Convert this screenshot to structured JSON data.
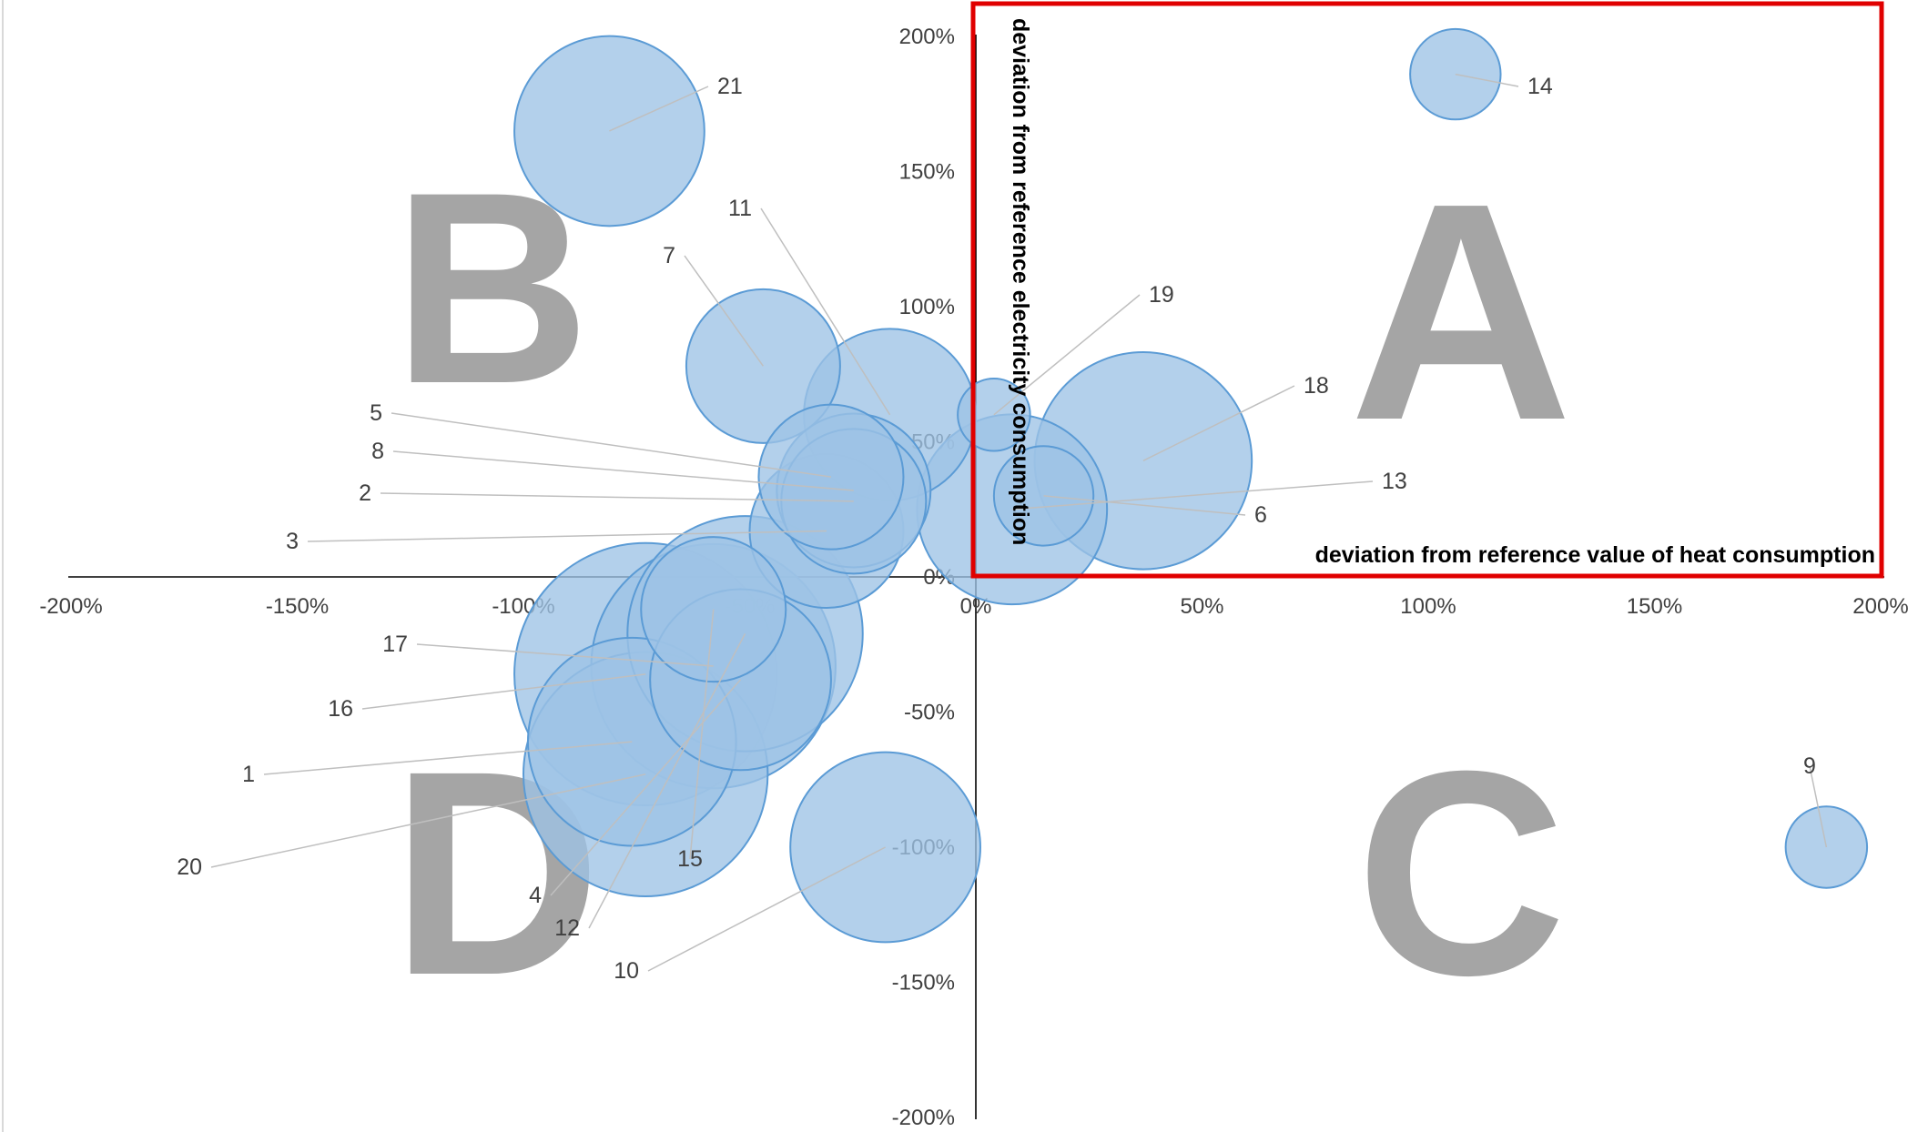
{
  "chart_data": {
    "type": "bubble",
    "xlabel": "deviation  from reference value of heat consumption",
    "ylabel": "deviation from reference electricity consumption",
    "xlim": [
      -2,
      2
    ],
    "ylim": [
      -2,
      2
    ],
    "x_ticks": [
      "-200%",
      "-150%",
      "-100%",
      "-50%",
      "0%",
      "50%",
      "100%",
      "150%",
      "200%"
    ],
    "y_ticks": [
      "200%",
      "150%",
      "100%",
      "50%",
      "0%",
      "-50%",
      "-100%",
      "-150%",
      "-200%"
    ],
    "grid": false,
    "bubble_color": "#9dc3e6",
    "bubble_edge_color": "#5b9bd5",
    "highlight_color": "#e00000",
    "quadrant_letters": [
      "A",
      "B",
      "C",
      "D"
    ],
    "points": [
      {
        "label": "1",
        "x": -0.76,
        "y": -0.61,
        "size": 0.23
      },
      {
        "label": "2",
        "x": -0.27,
        "y": 0.28,
        "size": 0.16
      },
      {
        "label": "3",
        "x": -0.33,
        "y": 0.17,
        "size": 0.17
      },
      {
        "label": "4",
        "x": -0.52,
        "y": -0.38,
        "size": 0.2
      },
      {
        "label": "5",
        "x": -0.32,
        "y": 0.37,
        "size": 0.16
      },
      {
        "label": "6",
        "x": 0.15,
        "y": 0.3,
        "size": 0.11
      },
      {
        "label": "7",
        "x": -0.47,
        "y": 0.78,
        "size": 0.17
      },
      {
        "label": "8",
        "x": -0.27,
        "y": 0.32,
        "size": 0.17
      },
      {
        "label": "9",
        "x": 1.88,
        "y": -1.0,
        "size": 0.09
      },
      {
        "label": "10",
        "x": -0.2,
        "y": -1.0,
        "size": 0.21
      },
      {
        "label": "11",
        "x": -0.19,
        "y": 0.6,
        "size": 0.19
      },
      {
        "label": "12",
        "x": -0.51,
        "y": -0.21,
        "size": 0.26
      },
      {
        "label": "13",
        "x": 0.08,
        "y": 0.25,
        "size": 0.21
      },
      {
        "label": "14",
        "x": 1.06,
        "y": 1.86,
        "size": 0.1
      },
      {
        "label": "15",
        "x": -0.58,
        "y": -0.12,
        "size": 0.16
      },
      {
        "label": "16",
        "x": -0.73,
        "y": -0.36,
        "size": 0.29
      },
      {
        "label": "17",
        "x": -0.58,
        "y": -0.33,
        "size": 0.27
      },
      {
        "label": "18",
        "x": 0.37,
        "y": 0.43,
        "size": 0.24
      },
      {
        "label": "19",
        "x": 0.04,
        "y": 0.6,
        "size": 0.08
      },
      {
        "label": "20",
        "x": -0.73,
        "y": -0.73,
        "size": 0.27
      },
      {
        "label": "21",
        "x": -0.81,
        "y": 1.65,
        "size": 0.21
      }
    ]
  }
}
